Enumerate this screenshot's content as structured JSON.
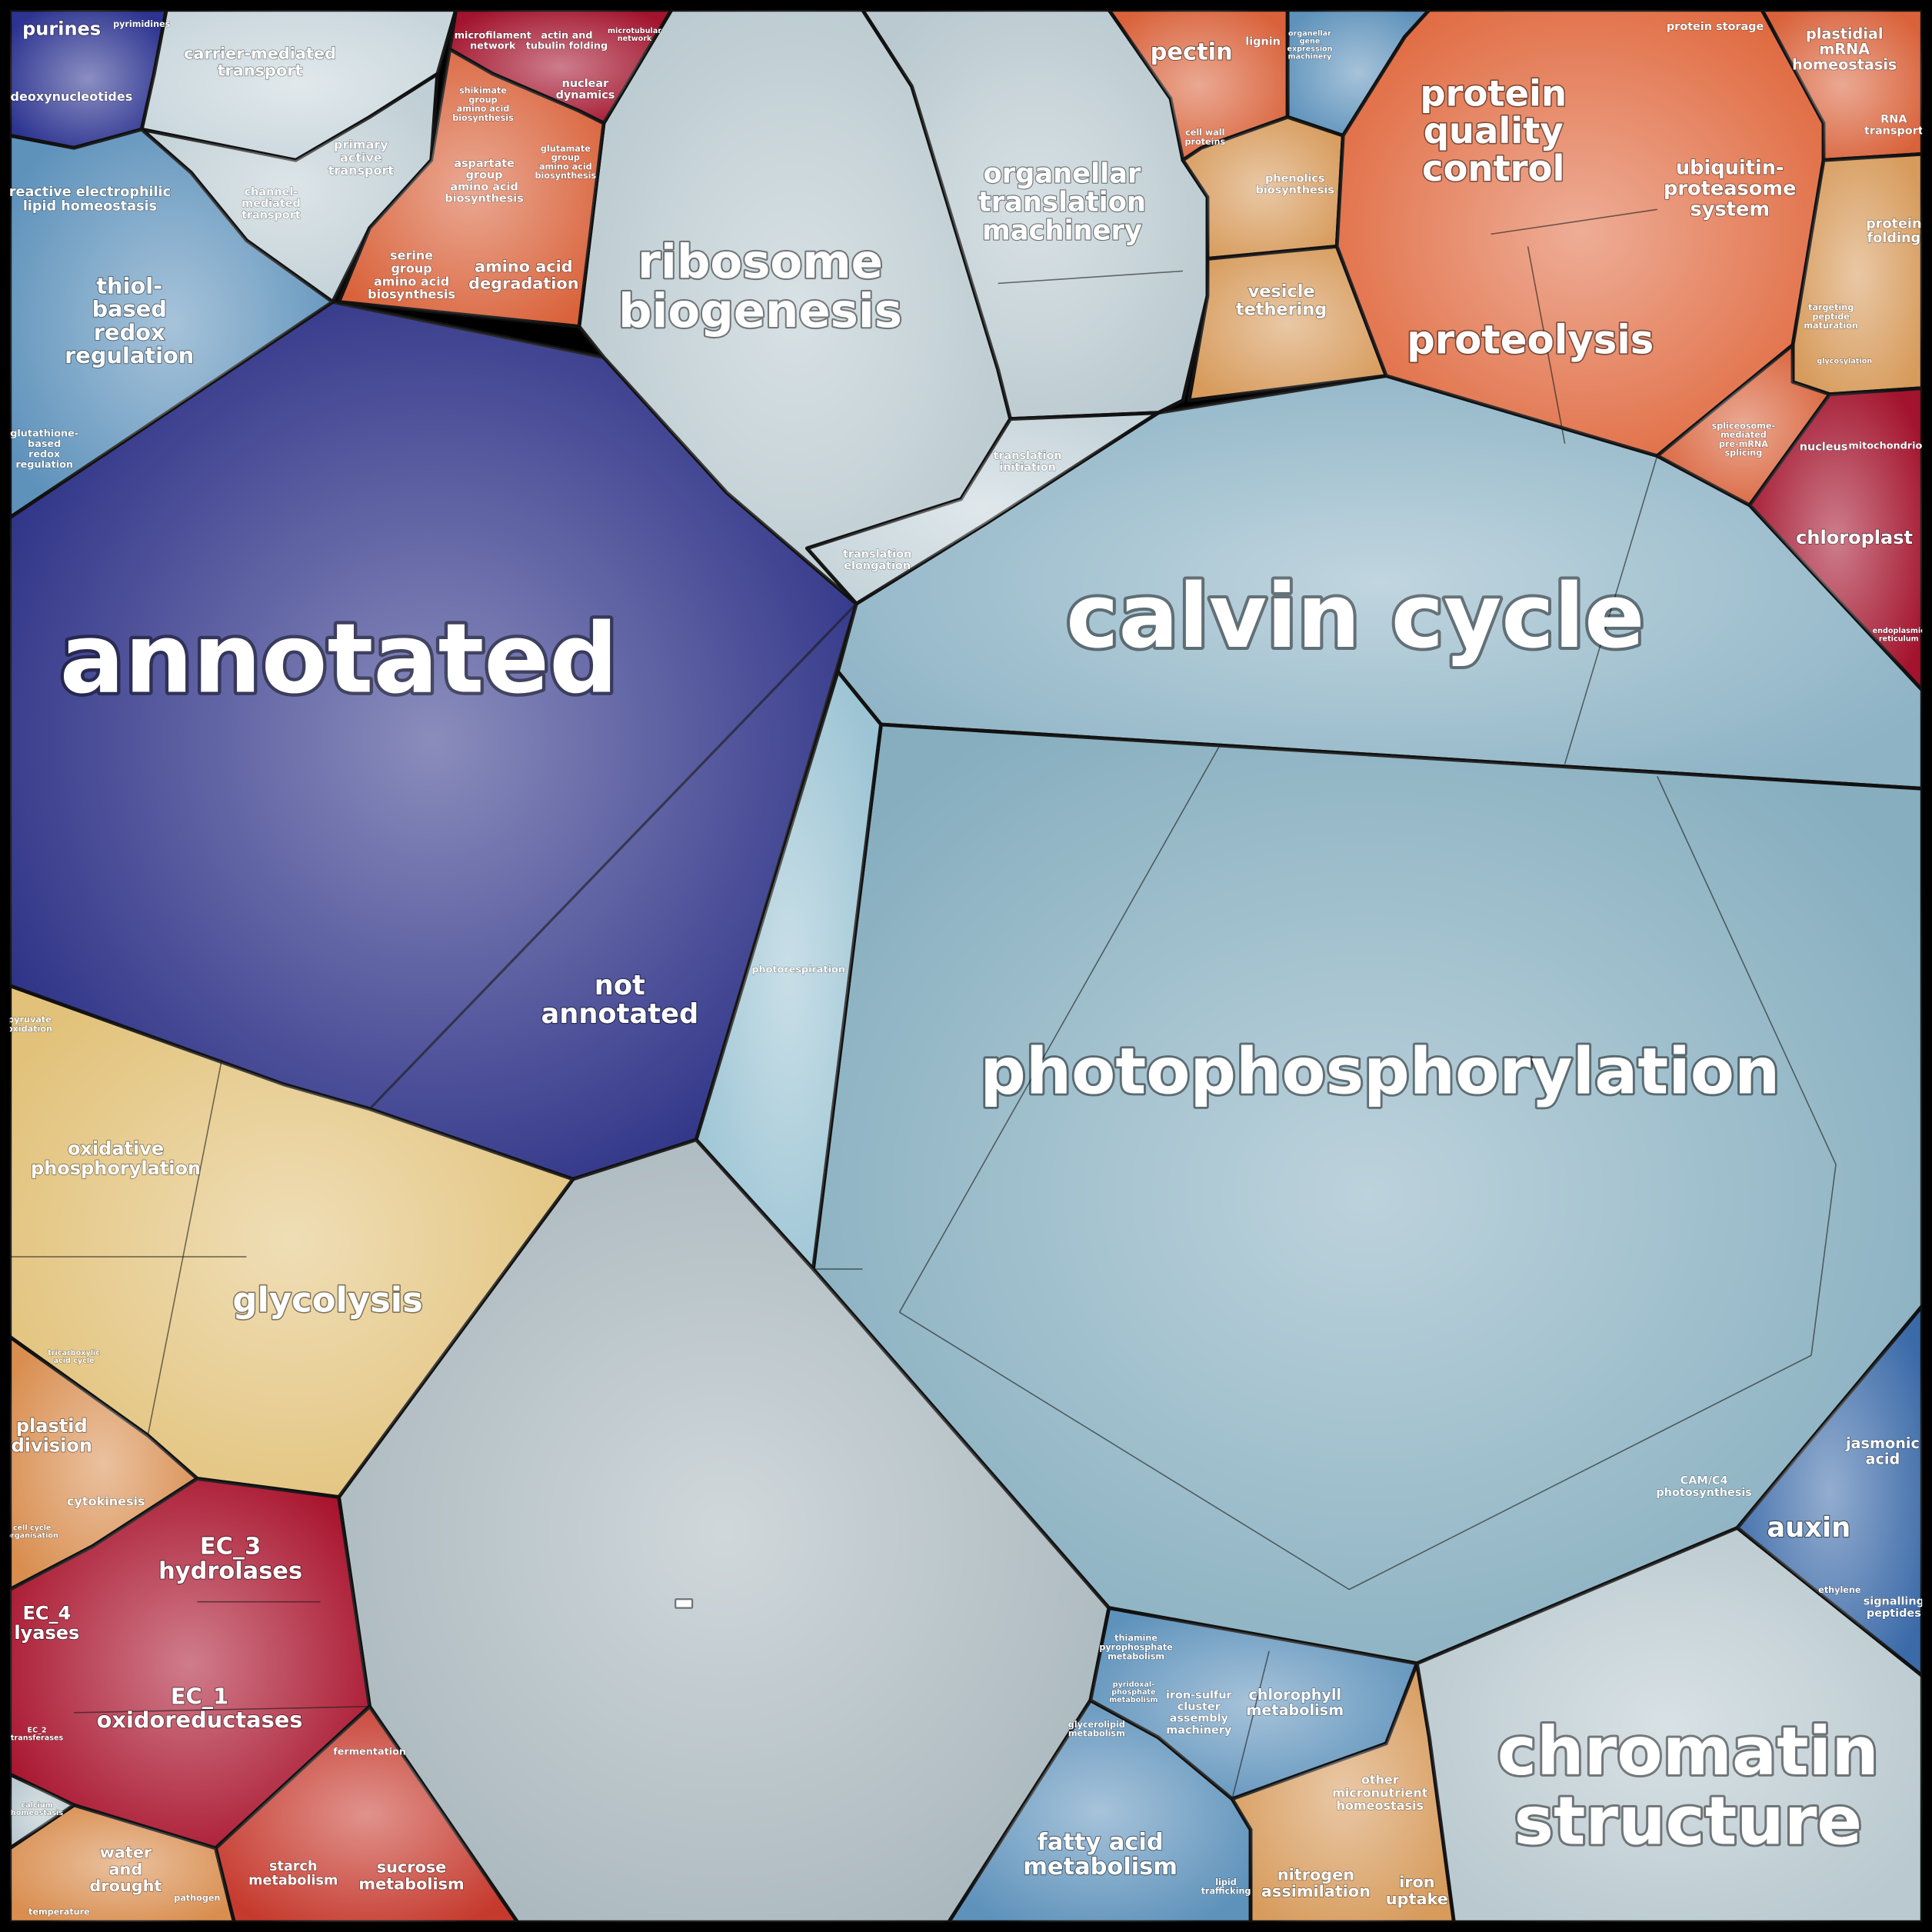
{
  "cells": [
    {
      "color": "#2b2f85",
      "labels": [
        [
          "annotated"
        ],
        [
          "not",
          "annotated"
        ]
      ]
    },
    {
      "color": "#8db3c5",
      "labels": [
        [
          "calvin cycle"
        ]
      ]
    },
    {
      "color": "#86aebf",
      "labels": [
        [
          "photophosphorylation"
        ],
        [
          "CAM/C4",
          "photosynthesis"
        ]
      ]
    },
    {
      "color": "#9cc4d4",
      "labels": [
        [
          "photorespiration"
        ]
      ]
    },
    {
      "color": "#a9b7bd",
      "labels": [
        [
          "-"
        ]
      ]
    },
    {
      "color": "#b9c9cf",
      "labels": [
        [
          "ribosome",
          "biogenesis"
        ]
      ]
    },
    {
      "color": "#b9c9cf",
      "labels": [
        [
          "organellar",
          "translation",
          "machinery"
        ]
      ]
    },
    {
      "color": "#c5d4da",
      "labels": [
        [
          "translation",
          "initiation"
        ],
        [
          "translation",
          "elongation"
        ]
      ]
    },
    {
      "color": "#2c3390",
      "labels": [
        [
          "purines"
        ],
        [
          "pyrimidines"
        ],
        [
          "deoxynucleotides"
        ]
      ]
    },
    {
      "color": "#c8d6dc",
      "labels": [
        [
          "carrier-mediated",
          "transport"
        ]
      ]
    },
    {
      "color": "#c0cfd5",
      "labels": [
        [
          "primary",
          "active",
          "transport"
        ],
        [
          "channel-",
          "mediated",
          "transport"
        ]
      ]
    },
    {
      "color": "#5e92bb",
      "labels": [
        [
          "reactive electrophilic",
          "lipid homeostasis"
        ],
        [
          "thiol-",
          "based",
          "redox",
          "regulation"
        ],
        [
          "glutathione-",
          "based",
          "redox",
          "regulation"
        ]
      ]
    },
    {
      "color": "#a3132d",
      "labels": [
        [
          "microfilament",
          "network"
        ],
        [
          "actin and",
          "tubulin folding"
        ],
        [
          "microtubular",
          "network"
        ],
        [
          "nuclear",
          "dynamics"
        ]
      ]
    },
    {
      "color": "#d9623a",
      "labels": [
        [
          "shikimate",
          "group",
          "amino acid",
          "biosynthesis"
        ],
        [
          "aspartate",
          "group",
          "amino acid",
          "biosynthesis"
        ],
        [
          "glutamate",
          "group",
          "amino acid",
          "biosynthesis"
        ],
        [
          "serine",
          "group",
          "amino acid",
          "biosynthesis"
        ],
        [
          "amino acid",
          "degradation"
        ]
      ]
    },
    {
      "color": "#d9623a",
      "labels": [
        [
          "pectin"
        ],
        [
          "lignin"
        ],
        [
          "cell wall",
          "proteins"
        ]
      ]
    },
    {
      "color": "#5e92bb",
      "labels": [
        [
          "organellar",
          "gene",
          "expression",
          "machinery"
        ]
      ]
    },
    {
      "color": "#d79b5c",
      "labels": [
        [
          "phenolics",
          "biosynthesis"
        ]
      ]
    },
    {
      "color": "#d79b5c",
      "labels": [
        [
          "vesicle",
          "tethering"
        ]
      ]
    },
    {
      "color": "#e06a40",
      "labels": [
        [
          "protein",
          "quality",
          "control"
        ],
        [
          "proteolysis"
        ],
        [
          "ubiquitin-",
          "proteasome",
          "system"
        ],
        [
          "protein storage"
        ]
      ]
    },
    {
      "color": "#d9623a",
      "labels": [
        [
          "plastidial",
          "mRNA",
          "homeostasis"
        ],
        [
          "RNA",
          "transport"
        ]
      ]
    },
    {
      "color": "#d79b5c",
      "labels": [
        [
          "protein",
          "folding"
        ],
        [
          "targeting",
          "peptide",
          "maturation"
        ],
        [
          "glycosylation"
        ]
      ]
    },
    {
      "color": "#d9623a",
      "labels": [
        [
          "spliceosome-",
          "mediated",
          "pre-mRNA",
          "splicing"
        ]
      ]
    },
    {
      "color": "#a3132d",
      "labels": [
        [
          "nucleus"
        ],
        [
          "mitochondrion"
        ],
        [
          "chloroplast"
        ],
        [
          "endoplasmic",
          "reticulum"
        ]
      ]
    },
    {
      "color": "#e2c27a",
      "labels": [
        [
          "oxidative",
          "phosphorylation"
        ],
        [
          "glycolysis"
        ],
        [
          "pyruvate",
          "oxidation"
        ],
        [
          "tricarboxylic",
          "acid cycle"
        ]
      ]
    },
    {
      "color": "#d98e50",
      "labels": [
        [
          "plastid",
          "division"
        ],
        [
          "cytokinesis"
        ],
        [
          "cell cycle",
          "organisation"
        ]
      ]
    },
    {
      "color": "#a8122c",
      "labels": [
        [
          "EC_3",
          "hydrolases"
        ],
        [
          "EC_4",
          "lyases"
        ],
        [
          "EC_1",
          "oxidoreductases"
        ],
        [
          "EC_2",
          "transferases"
        ]
      ]
    },
    {
      "color": "#c63a2e",
      "labels": [
        [
          "fermentation"
        ],
        [
          "starch",
          "metabolism"
        ],
        [
          "sucrose",
          "metabolism"
        ]
      ]
    },
    {
      "color": "#d98e50",
      "labels": [
        [
          "water",
          "and",
          "drought"
        ],
        [
          "temperature"
        ],
        [
          "pathogen"
        ]
      ]
    },
    {
      "color": "#b9c9cf",
      "labels": [
        [
          "calcium",
          "homeostasis"
        ]
      ]
    },
    {
      "color": "#5e92bb",
      "labels": [
        [
          "fatty acid",
          "metabolism"
        ],
        [
          "glycerolipid",
          "metabolism"
        ],
        [
          "lipid",
          "trafficking"
        ]
      ]
    },
    {
      "color": "#5e92bb",
      "labels": [
        [
          "thiamine",
          "pyrophosphate",
          "metabolism"
        ],
        [
          "iron-sulfur",
          "cluster",
          "assembly",
          "machinery"
        ],
        [
          "chlorophyll",
          "metabolism"
        ],
        [
          "pyridoxal-",
          "phosphate",
          "metabolism"
        ]
      ]
    },
    {
      "color": "#d79b5c",
      "labels": [
        [
          "other",
          "micronutrient",
          "homeostasis"
        ],
        [
          "nitrogen",
          "assimilation"
        ],
        [
          "iron",
          "uptake"
        ]
      ]
    },
    {
      "color": "#b9c9cf",
      "labels": [
        [
          "chromatin",
          "structure"
        ]
      ]
    },
    {
      "color": "#3b6aa8",
      "labels": [
        [
          "jasmonic",
          "acid"
        ],
        [
          "auxin"
        ],
        [
          "ethylene"
        ],
        [
          "signalling",
          "peptides"
        ]
      ]
    }
  ]
}
